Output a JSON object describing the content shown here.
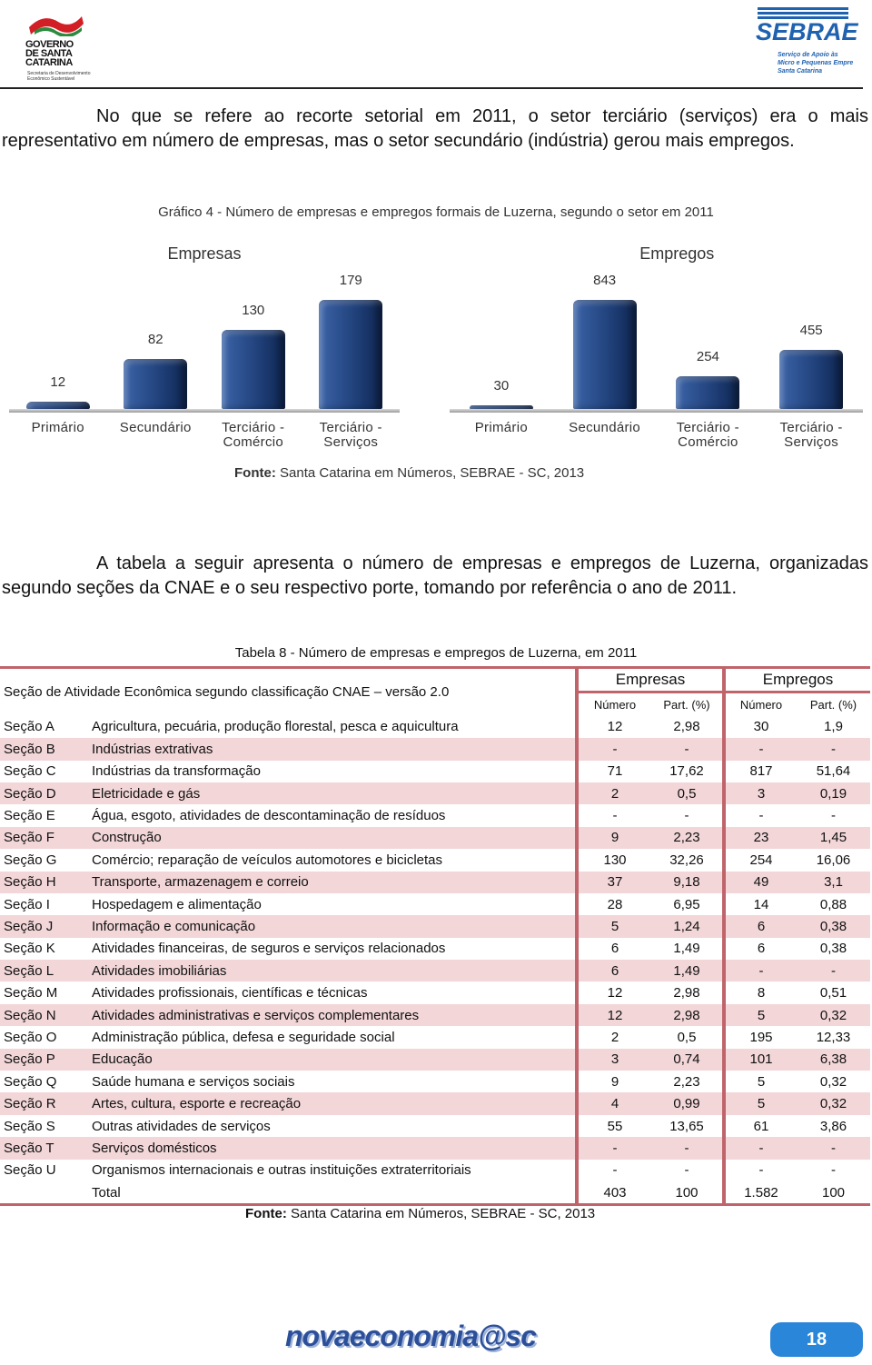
{
  "header": {
    "left_logo": "GOVERNO\nDE SANTA\nCATARINA",
    "left_sub": "Secretaria de Desenvolvimento\nEconômico Sustentável",
    "right_logo": "SEBRAE",
    "right_sub": "Serviço de Apoio às\nMicro e Pequenas Empre\nSanta Catarina"
  },
  "paragraphs": [
    "No que se refere ao recorte setorial em 2011, o setor terciário (serviços) era o mais representativo em número de empresas, mas o setor secundário (indústria) gerou mais empregos.",
    "A tabela a seguir apresenta o número de empresas e empregos de Luzerna, organizadas segundo seções da CNAE e o seu respectivo porte, tomando por referência o ano de 2011."
  ],
  "figure_caption": "Gráfico 4 - Número de empresas e empregos formais de Luzerna, segundo o setor em 2011",
  "chart_data": [
    {
      "type": "bar",
      "title": "Empresas",
      "categories": [
        "Primário",
        "Secundário",
        "Terciário -\nComércio",
        "Terciário -\nServiços"
      ],
      "values": [
        12,
        82,
        130,
        179
      ],
      "color": "#1f3f78"
    },
    {
      "type": "bar",
      "title": "Empregos",
      "categories": [
        "Primário",
        "Secundário",
        "Terciário -\nComércio",
        "Terciário -\nServiços"
      ],
      "values": [
        30,
        843,
        254,
        455
      ],
      "color": "#1f3f78"
    }
  ],
  "chart_source": {
    "label": "Fonte:",
    "text": "Santa Catarina em Números, SEBRAE - SC, 2013"
  },
  "table": {
    "caption": "Tabela 8 - Número de empresas e empregos de Luzerna, em  2011",
    "row_header": "Seção de Atividade Econômica segundo classificação CNAE – versão 2.0",
    "groups": [
      "Empresas",
      "Empregos"
    ],
    "subheaders": [
      "Número",
      "Part. (%)",
      "Número",
      "Part. (%)"
    ],
    "rows": [
      [
        "Seção A",
        "Agricultura, pecuária, produção florestal, pesca e aquicultura",
        "12",
        "2,98",
        "30",
        "1,9"
      ],
      [
        "Seção B",
        "Indústrias extrativas",
        "-",
        "-",
        "-",
        "-"
      ],
      [
        "Seção C",
        "Indústrias da transformação",
        "71",
        "17,62",
        "817",
        "51,64"
      ],
      [
        "Seção D",
        "Eletricidade e gás",
        "2",
        "0,5",
        "3",
        "0,19"
      ],
      [
        "Seção E",
        "Água, esgoto, atividades de descontaminação de resíduos",
        "-",
        "-",
        "-",
        "-"
      ],
      [
        "Seção F",
        "Construção",
        "9",
        "2,23",
        "23",
        "1,45"
      ],
      [
        "Seção G",
        "Comércio; reparação de veículos automotores e bicicletas",
        "130",
        "32,26",
        "254",
        "16,06"
      ],
      [
        "Seção H",
        "Transporte, armazenagem e correio",
        "37",
        "9,18",
        "49",
        "3,1"
      ],
      [
        "Seção I",
        "Hospedagem e alimentação",
        "28",
        "6,95",
        "14",
        "0,88"
      ],
      [
        "Seção J",
        "Informação e comunicação",
        "5",
        "1,24",
        "6",
        "0,38"
      ],
      [
        "Seção K",
        "Atividades financeiras, de seguros e serviços relacionados",
        "6",
        "1,49",
        "6",
        "0,38"
      ],
      [
        "Seção L",
        "Atividades imobiliárias",
        "6",
        "1,49",
        "-",
        "-"
      ],
      [
        "Seção M",
        "Atividades profissionais, científicas e técnicas",
        "12",
        "2,98",
        "8",
        "0,51"
      ],
      [
        "Seção N",
        "Atividades administrativas e serviços complementares",
        "12",
        "2,98",
        "5",
        "0,32"
      ],
      [
        "Seção O",
        "Administração pública, defesa e seguridade social",
        "2",
        "0,5",
        "195",
        "12,33"
      ],
      [
        "Seção P",
        "Educação",
        "3",
        "0,74",
        "101",
        "6,38"
      ],
      [
        "Seção Q",
        "Saúde humana e serviços sociais",
        "9",
        "2,23",
        "5",
        "0,32"
      ],
      [
        "Seção R",
        "Artes, cultura, esporte e recreação",
        "4",
        "0,99",
        "5",
        "0,32"
      ],
      [
        "Seção S",
        "Outras atividades de serviços",
        "55",
        "13,65",
        "61",
        "3,86"
      ],
      [
        "Seção T",
        "Serviços domésticos",
        "-",
        "-",
        "-",
        "-"
      ],
      [
        "Seção U",
        "Organismos internacionais e outras instituições extraterritoriais",
        "-",
        "-",
        "-",
        "-"
      ]
    ],
    "total": {
      "label": "Total",
      "values": [
        "403",
        "100",
        "1.582",
        "100"
      ]
    },
    "source": {
      "label": "Fonte:",
      "text": "Santa Catarina em Números, SEBRAE - SC, 2013"
    }
  },
  "footer": {
    "logo": "novaeconomia@sc",
    "page": "18"
  }
}
